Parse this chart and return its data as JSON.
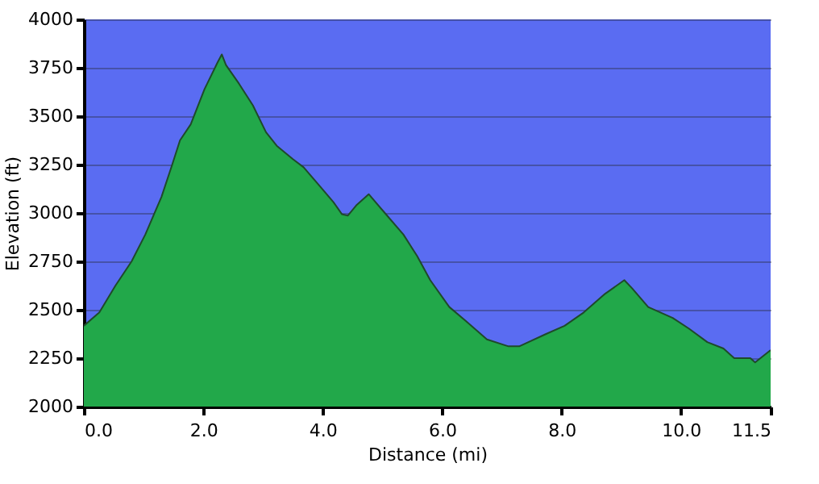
{
  "chart_data": {
    "type": "area",
    "xlabel": "Distance   (mi)",
    "ylabel": "Elevation (ft)",
    "x": [
      0,
      0.26,
      0.53,
      0.8,
      1.03,
      1.3,
      1.48,
      1.61,
      1.79,
      2.02,
      2.24,
      2.31,
      2.38,
      2.6,
      2.83,
      3.05,
      3.23,
      3.5,
      3.68,
      3.95,
      4.18,
      4.32,
      4.42,
      4.57,
      4.77,
      5.04,
      5.35,
      5.58,
      5.8,
      6.12,
      6.39,
      6.75,
      7.11,
      7.29,
      7.74,
      8.05,
      8.37,
      8.73,
      9.05,
      9.18,
      9.45,
      9.86,
      10.13,
      10.44,
      10.71,
      10.89,
      11.16,
      11.24,
      11.5
    ],
    "series": [
      {
        "color": "#22a84a",
        "values": [
          2417,
          2486,
          2625,
          2750,
          2889,
          3083,
          3250,
          3375,
          3458,
          3639,
          3778,
          3819,
          3764,
          3667,
          3556,
          3417,
          3347,
          3278,
          3236,
          3139,
          3056,
          2994,
          2986,
          3042,
          3097,
          3000,
          2889,
          2778,
          2653,
          2514,
          2444,
          2347,
          2311,
          2311,
          2375,
          2417,
          2486,
          2583,
          2653,
          2611,
          2514,
          2458,
          2403,
          2333,
          2300,
          2250,
          2250,
          2228,
          2292
        ]
      }
    ],
    "xlim": [
      0,
      11.5
    ],
    "xticks": [
      {
        "value": 0,
        "label": "0.0"
      },
      {
        "value": 2,
        "label": "2.0"
      },
      {
        "value": 4,
        "label": "4.0"
      },
      {
        "value": 6,
        "label": "6.0"
      },
      {
        "value": 8,
        "label": "8.0"
      },
      {
        "value": 10,
        "label": "10.0"
      },
      {
        "value": 11.5,
        "label": "11.5"
      }
    ],
    "ylim": [
      2000,
      4000
    ],
    "yticks": [
      2000,
      2250,
      2500,
      2750,
      3000,
      3250,
      3500,
      3750,
      4000
    ],
    "grid": "y"
  }
}
